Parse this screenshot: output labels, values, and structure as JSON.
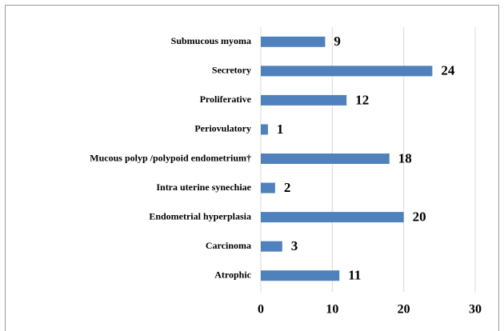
{
  "chart_data": {
    "type": "bar",
    "orientation": "horizontal",
    "categories": [
      "Submucous myoma",
      "Secretory",
      "Proliferative",
      "Periovulatory",
      "Mucous polyp /polypoid endometrium†",
      "Intra uterine synechiae",
      "Endometrial hyperplasia",
      "Carcinoma",
      "Atrophic"
    ],
    "values": [
      9,
      24,
      12,
      1,
      18,
      2,
      20,
      3,
      11
    ],
    "color": "#4f81bd",
    "xlim": [
      0,
      30
    ],
    "xticks": [
      0,
      10,
      20,
      30
    ],
    "grid": true
  }
}
